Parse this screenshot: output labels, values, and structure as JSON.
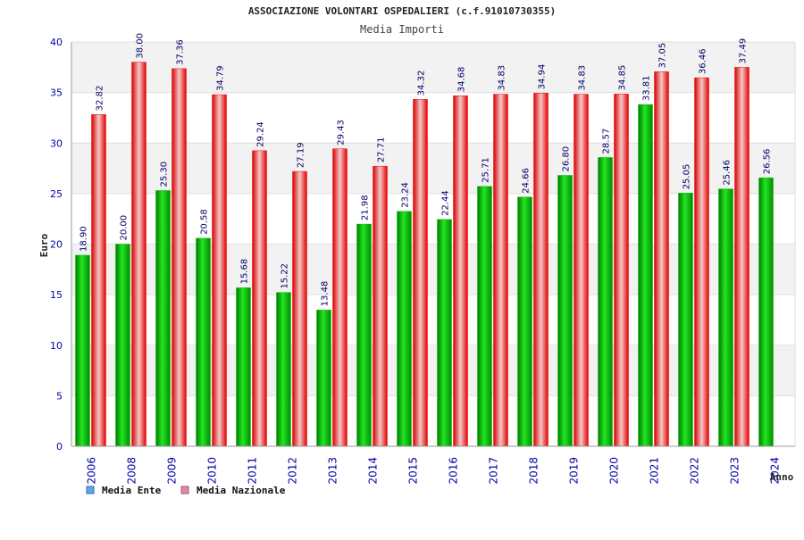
{
  "colors": {
    "ente": "#00c000",
    "nazionale": "#ff0000",
    "legend_ente": "#5fa4e8",
    "legend_nazionale": "#d98aa6",
    "band": "#f2f2f2",
    "tick_text": "#0000aa"
  },
  "chart_data": {
    "type": "bar",
    "title": "ASSOCIAZIONE VOLONTARI OSPEDALIERI (c.f.91010730355)",
    "subtitle": "Media Importi",
    "xlabel": "Anno",
    "ylabel": "Euro",
    "ylim": [
      0,
      40
    ],
    "yticks": [
      0,
      5,
      10,
      15,
      20,
      25,
      30,
      35,
      40
    ],
    "grid": true,
    "legend_position": "bottom-left",
    "categories": [
      "2006",
      "2008",
      "2009",
      "2010",
      "2011",
      "2012",
      "2013",
      "2014",
      "2015",
      "2016",
      "2017",
      "2018",
      "2019",
      "2020",
      "2021",
      "2022",
      "2023",
      "2024"
    ],
    "series": [
      {
        "name": "Media Ente",
        "values": [
          18.9,
          20.0,
          25.3,
          20.58,
          15.68,
          15.22,
          13.48,
          21.98,
          23.24,
          22.44,
          25.71,
          24.66,
          26.8,
          28.57,
          33.81,
          25.05,
          25.46,
          26.56
        ],
        "labels": [
          "18.90",
          "20.00",
          "25.30",
          "20.58",
          "15.68",
          "15.22",
          "13.48",
          "21.98",
          "23.24",
          "22.44",
          "25.71",
          "24.66",
          "26.80",
          "28.57",
          "33.81",
          "25.05",
          "25.46",
          "26.56"
        ]
      },
      {
        "name": "Media Nazionale",
        "values": [
          32.82,
          38.0,
          37.36,
          34.79,
          29.24,
          27.19,
          29.43,
          27.71,
          34.32,
          34.68,
          34.83,
          34.94,
          34.83,
          34.85,
          37.05,
          36.46,
          37.49,
          null
        ],
        "labels": [
          "32.82",
          "38.00",
          "37.36",
          "34.79",
          "29.24",
          "27.19",
          "29.43",
          "27.71",
          "34.32",
          "34.68",
          "34.83",
          "34.94",
          "34.83",
          "34.85",
          "37.05",
          "36.46",
          "37.49",
          ""
        ]
      }
    ]
  }
}
